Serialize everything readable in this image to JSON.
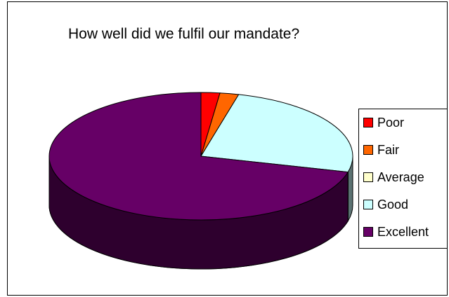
{
  "chart_data": {
    "type": "pie",
    "title": "How well did we fulfil our mandate?",
    "categories": [
      "Poor",
      "Fair",
      "Average",
      "Good",
      "Excellent"
    ],
    "values": [
      2,
      2,
      0,
      25,
      71
    ],
    "colors": [
      "#ff0000",
      "#ff6600",
      "#ffffcc",
      "#ccffff",
      "#660066"
    ],
    "legend_position": "right",
    "style": "3d-pie"
  }
}
